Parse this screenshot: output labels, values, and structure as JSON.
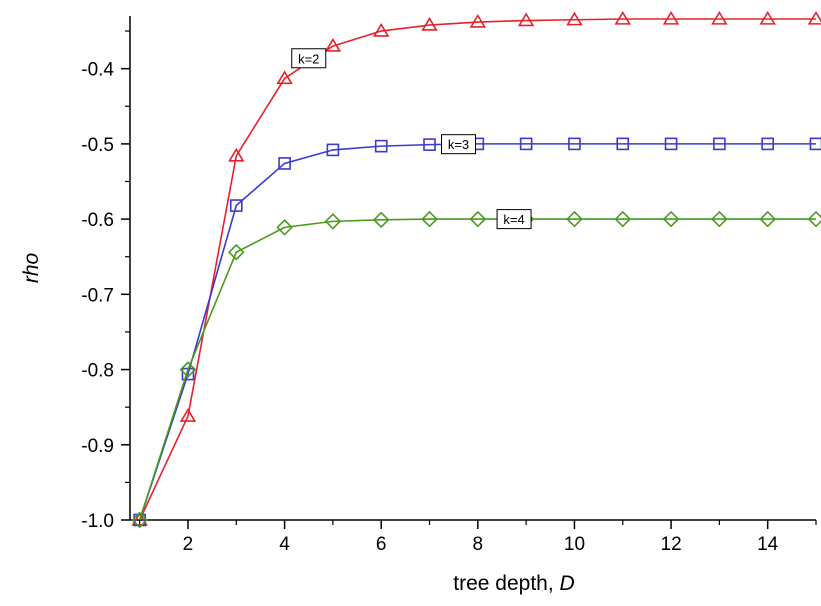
{
  "chart_data": {
    "type": "line",
    "title": "",
    "xlabel": "tree depth, ",
    "xlabel_var": "D",
    "ylabel": "rho",
    "xlim": [
      0.8,
      15
    ],
    "ylim": [
      -1.0,
      -0.33
    ],
    "x_ticks": [
      2,
      4,
      6,
      8,
      10,
      12,
      14
    ],
    "y_ticks": [
      -1.0,
      -0.9,
      -0.8,
      -0.7,
      -0.6,
      -0.5,
      -0.4
    ],
    "y_tick_labels": [
      "-1.0",
      "-0.9",
      "-0.8",
      "-0.7",
      "-0.6",
      "-0.5",
      "-0.4"
    ],
    "grid": false,
    "legend": "none",
    "x": [
      1,
      2,
      3,
      4,
      5,
      6,
      7,
      8,
      9,
      10,
      11,
      12,
      13,
      14,
      15
    ],
    "series": [
      {
        "name": "k=2",
        "color": "#e8202a",
        "marker": "triangle",
        "label_at_x": 4.5,
        "values": [
          -1.0,
          -0.862,
          -0.516,
          -0.413,
          -0.37,
          -0.35,
          -0.342,
          -0.338,
          -0.336,
          -0.335,
          -0.334,
          -0.334,
          -0.334,
          -0.334,
          -0.334
        ]
      },
      {
        "name": "k=3",
        "color": "#3a3ad0",
        "marker": "square",
        "label_at_x": 7.6,
        "values": [
          -1.0,
          -0.806,
          -0.582,
          -0.526,
          -0.508,
          -0.503,
          -0.501,
          -0.5,
          -0.5,
          -0.5,
          -0.5,
          -0.5,
          -0.5,
          -0.5,
          -0.5
        ]
      },
      {
        "name": "k=4",
        "color": "#4a9a1e",
        "marker": "diamond",
        "label_at_x": 8.75,
        "values": [
          -1.0,
          -0.8,
          -0.644,
          -0.611,
          -0.603,
          -0.601,
          -0.6,
          -0.6,
          -0.6,
          -0.6,
          -0.6,
          -0.6,
          -0.6,
          -0.6,
          -0.6
        ]
      }
    ]
  }
}
